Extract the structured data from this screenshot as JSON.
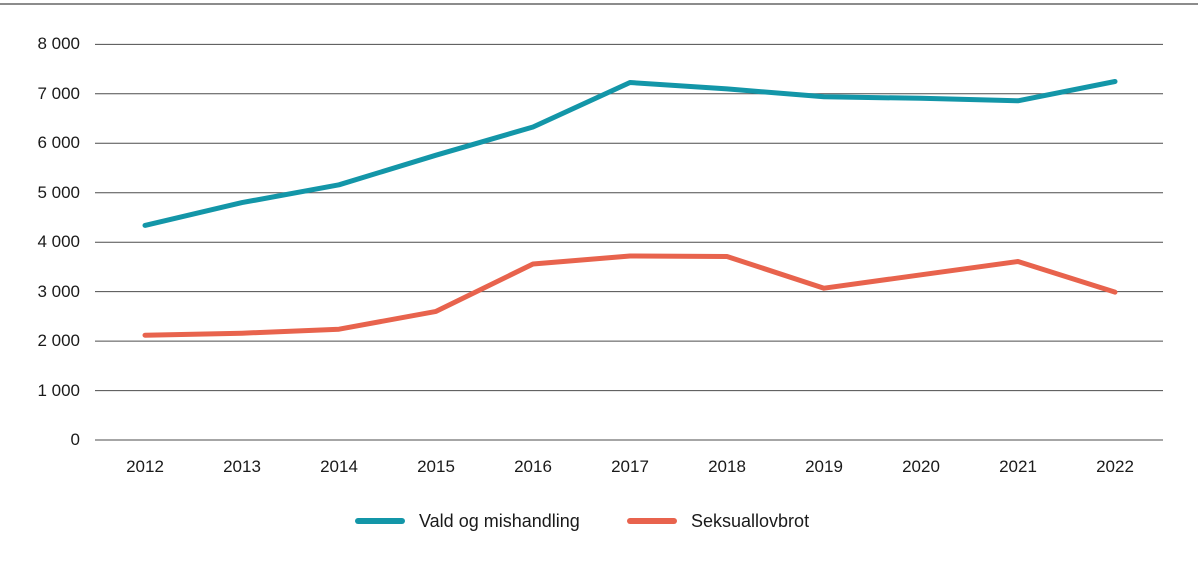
{
  "figure": {
    "background_color": "#ffffff",
    "top_rule_color": "#8c8c8c",
    "grid_color": "#4d4d4d",
    "text_color": "#1a1a1a"
  },
  "chart_data": {
    "type": "line",
    "title": "",
    "xlabel": "",
    "ylabel": "",
    "categories": [
      "2012",
      "2013",
      "2014",
      "2015",
      "2016",
      "2017",
      "2018",
      "2019",
      "2020",
      "2021",
      "2022"
    ],
    "series": [
      {
        "name": "Vald og mishandling",
        "color": "#1396a8",
        "values": [
          4340,
          4800,
          5160,
          5760,
          6330,
          7230,
          7100,
          6940,
          6910,
          6860,
          7250
        ]
      },
      {
        "name": "Seksuallovbrot",
        "color": "#e8634d",
        "values": [
          2120,
          2160,
          2240,
          2600,
          3560,
          3720,
          3710,
          3070,
          3340,
          3610,
          2990
        ]
      }
    ],
    "ylim": [
      0,
      8000
    ],
    "ytick_step": 1000,
    "ytick_labels": [
      "0",
      "1 000",
      "2 000",
      "3 000",
      "4 000",
      "5 000",
      "6 000",
      "7 000",
      "8 000"
    ],
    "grid": true,
    "legend_position": "bottom"
  }
}
